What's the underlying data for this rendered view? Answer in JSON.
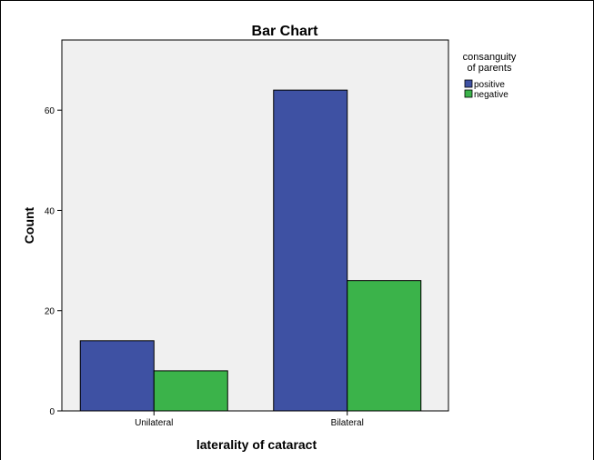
{
  "chart_data": {
    "type": "bar",
    "title": "Bar Chart",
    "xlabel": "laterality of cataract",
    "ylabel": "Count",
    "categories": [
      "Unilateral",
      "Bilateral"
    ],
    "series": [
      {
        "name": "positive",
        "values": [
          14,
          64
        ],
        "color": "#3e51a3"
      },
      {
        "name": "negative",
        "values": [
          8,
          26
        ],
        "color": "#3bb34a"
      }
    ],
    "ylim": [
      0,
      74
    ],
    "yticks": [
      0,
      20,
      40,
      60
    ],
    "legend": {
      "title_line1": "consanguity",
      "title_line2": "of parents",
      "placement": "right"
    },
    "grid": false,
    "plot_background": "#f0f0f0"
  }
}
